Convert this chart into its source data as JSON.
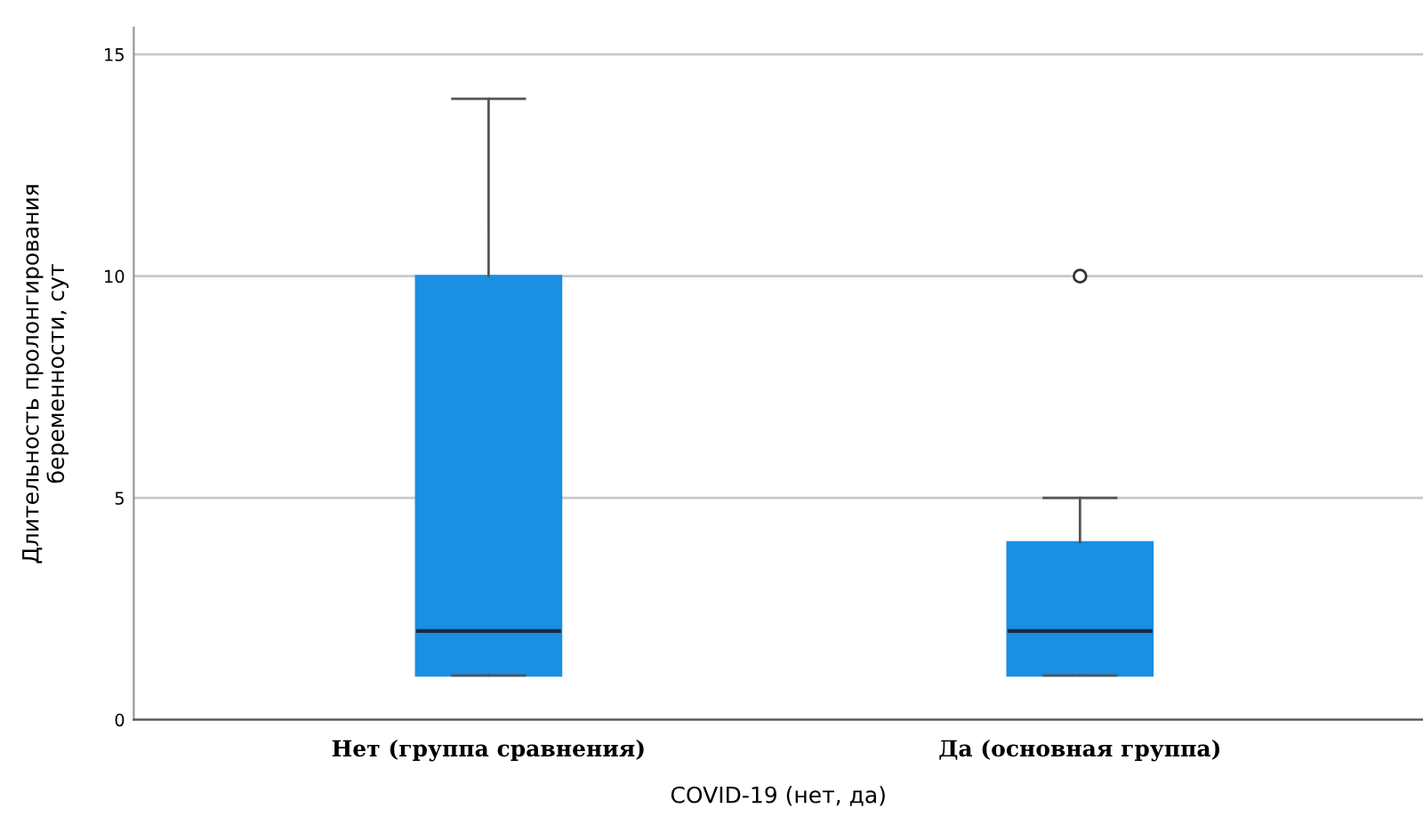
{
  "chart_data": {
    "type": "box",
    "xlabel": "COVID-19 (нет, да)",
    "ylabel": "Длительность пролонгирования\nбеременности, сут",
    "categories": [
      "Нет (группа сравнения)",
      "Да (основная группа)"
    ],
    "boxes": [
      {
        "low": 1,
        "q1": 1,
        "median": 2,
        "q3": 10,
        "high": 14
      },
      {
        "low": 1,
        "q1": 1,
        "median": 2,
        "q3": 4,
        "high": 5,
        "outliers": [
          10
        ]
      }
    ],
    "color": "#1a8fe3",
    "ylim": [
      0,
      15.6
    ],
    "yticks": [
      0,
      5,
      10,
      15
    ],
    "grid": "y"
  }
}
